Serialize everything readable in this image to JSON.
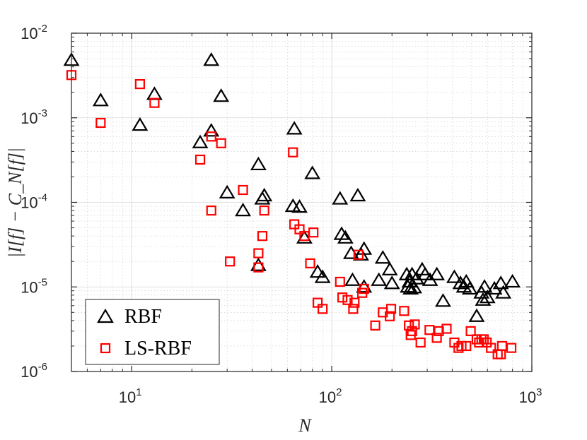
{
  "chart_data": {
    "type": "scatter",
    "xlabel": "N",
    "ylabel": "|I[f] − C_N[f]|",
    "x_scale": "log",
    "y_scale": "log",
    "xlim": [
      5,
      1000
    ],
    "ylim": [
      1e-06,
      0.01
    ],
    "grid": true,
    "legend_position": "bottom-left",
    "x_ticks": [
      {
        "value": 10,
        "base": "10",
        "exp": "1"
      },
      {
        "value": 100,
        "base": "10",
        "exp": "2"
      },
      {
        "value": 1000,
        "base": "10",
        "exp": "3"
      }
    ],
    "y_ticks": [
      {
        "value": 1e-06,
        "base": "10",
        "exp": "-6"
      },
      {
        "value": 1e-05,
        "base": "10",
        "exp": "-5"
      },
      {
        "value": 0.0001,
        "base": "10",
        "exp": "-4"
      },
      {
        "value": 0.001,
        "base": "10",
        "exp": "-3"
      },
      {
        "value": 0.01,
        "base": "10",
        "exp": "-2"
      }
    ],
    "series": [
      {
        "name": "RBF",
        "marker": "triangle",
        "color": "#000000",
        "points": [
          [
            5,
            0.0048
          ],
          [
            7,
            0.0016
          ],
          [
            11,
            0.00082
          ],
          [
            13,
            0.0019
          ],
          [
            22,
            0.00051
          ],
          [
            25,
            0.0048
          ],
          [
            25,
            0.0007
          ],
          [
            28,
            0.0018
          ],
          [
            30,
            0.00013
          ],
          [
            36,
            8e-05
          ],
          [
            43,
            0.00028
          ],
          [
            43,
            1.8e-05
          ],
          [
            45,
            0.00011
          ],
          [
            46,
            0.00012
          ],
          [
            64,
            9e-05
          ],
          [
            65,
            0.00074
          ],
          [
            69,
            8.8e-05
          ],
          [
            73,
            3.8e-05
          ],
          [
            80,
            0.00022
          ],
          [
            85,
            1.5e-05
          ],
          [
            90,
            1.3e-05
          ],
          [
            110,
            0.00011
          ],
          [
            112,
            4.2e-05
          ],
          [
            117,
            3.8e-05
          ],
          [
            125,
            2.5e-05
          ],
          [
            127,
            1.2e-05
          ],
          [
            135,
            0.00012
          ],
          [
            140,
            2.4e-05
          ],
          [
            145,
            2.8e-05
          ],
          [
            145,
            1e-05
          ],
          [
            172,
            1.2e-05
          ],
          [
            180,
            2.2e-05
          ],
          [
            195,
            1.6e-05
          ],
          [
            200,
            1.1e-05
          ],
          [
            237,
            1.4e-05
          ],
          [
            240,
            1e-05
          ],
          [
            245,
            1.15e-05
          ],
          [
            248,
            9.5e-06
          ],
          [
            252,
            1.4e-05
          ],
          [
            258,
            9.8e-06
          ],
          [
            265,
            1.25e-05
          ],
          [
            283,
            1.6e-05
          ],
          [
            293,
            1.4e-05
          ],
          [
            310,
            1.2e-05
          ],
          [
            335,
            1.4e-05
          ],
          [
            360,
            6.8e-06
          ],
          [
            410,
            1.3e-05
          ],
          [
            440,
            1.1e-05
          ],
          [
            458,
            1e-05
          ],
          [
            470,
            1.15e-05
          ],
          [
            490,
            9.5e-06
          ],
          [
            530,
            4.5e-06
          ],
          [
            560,
            8.5e-06
          ],
          [
            570,
            7e-06
          ],
          [
            580,
            1e-05
          ],
          [
            600,
            7.5e-06
          ],
          [
            650,
            9.5e-06
          ],
          [
            700,
            1.1e-05
          ],
          [
            720,
            8.5e-06
          ],
          [
            800,
            1.15e-05
          ]
        ]
      },
      {
        "name": "LS-RBF",
        "marker": "square",
        "color": "#ff0000",
        "points": [
          [
            5,
            0.0032
          ],
          [
            7,
            0.00087
          ],
          [
            11,
            0.0025
          ],
          [
            13,
            0.0015
          ],
          [
            22,
            0.00032
          ],
          [
            25,
            0.0006
          ],
          [
            25,
            8e-05
          ],
          [
            28,
            0.0005
          ],
          [
            31,
            2e-05
          ],
          [
            36,
            0.00014
          ],
          [
            43,
            2.5e-05
          ],
          [
            43,
            1.7e-05
          ],
          [
            45,
            4e-05
          ],
          [
            46,
            8e-05
          ],
          [
            64,
            0.00039
          ],
          [
            65,
            5.5e-05
          ],
          [
            69,
            4.8e-05
          ],
          [
            73,
            4e-05
          ],
          [
            78,
            1.9e-05
          ],
          [
            81,
            4.4e-05
          ],
          [
            85,
            6.5e-06
          ],
          [
            90,
            5.5e-06
          ],
          [
            110,
            1.15e-05
          ],
          [
            113,
            7.5e-06
          ],
          [
            120,
            7e-06
          ],
          [
            128,
            5.5e-06
          ],
          [
            130,
            6.5e-06
          ],
          [
            136,
            2.4e-05
          ],
          [
            142,
            8.5e-06
          ],
          [
            145,
            9.5e-06
          ],
          [
            165,
            3.5e-06
          ],
          [
            180,
            5e-06
          ],
          [
            195,
            4.5e-06
          ],
          [
            198,
            5.5e-06
          ],
          [
            230,
            5.2e-06
          ],
          [
            243,
            3.5e-06
          ],
          [
            248,
            2.7e-06
          ],
          [
            252,
            3e-06
          ],
          [
            260,
            3.6e-06
          ],
          [
            278,
            2.2e-06
          ],
          [
            308,
            3.1e-06
          ],
          [
            335,
            2.5e-06
          ],
          [
            343,
            3e-06
          ],
          [
            375,
            3.2e-06
          ],
          [
            410,
            2.2e-06
          ],
          [
            430,
            1.9e-06
          ],
          [
            445,
            2e-06
          ],
          [
            470,
            2e-06
          ],
          [
            495,
            3e-06
          ],
          [
            530,
            2.4e-06
          ],
          [
            545,
            2.2e-06
          ],
          [
            560,
            2.4e-06
          ],
          [
            575,
            2.4e-06
          ],
          [
            595,
            2.2e-06
          ],
          [
            625,
            1.9e-06
          ],
          [
            675,
            1.6e-06
          ],
          [
            700,
            1.6e-06
          ],
          [
            710,
            2e-06
          ],
          [
            790,
            1.9e-06
          ]
        ]
      }
    ]
  }
}
